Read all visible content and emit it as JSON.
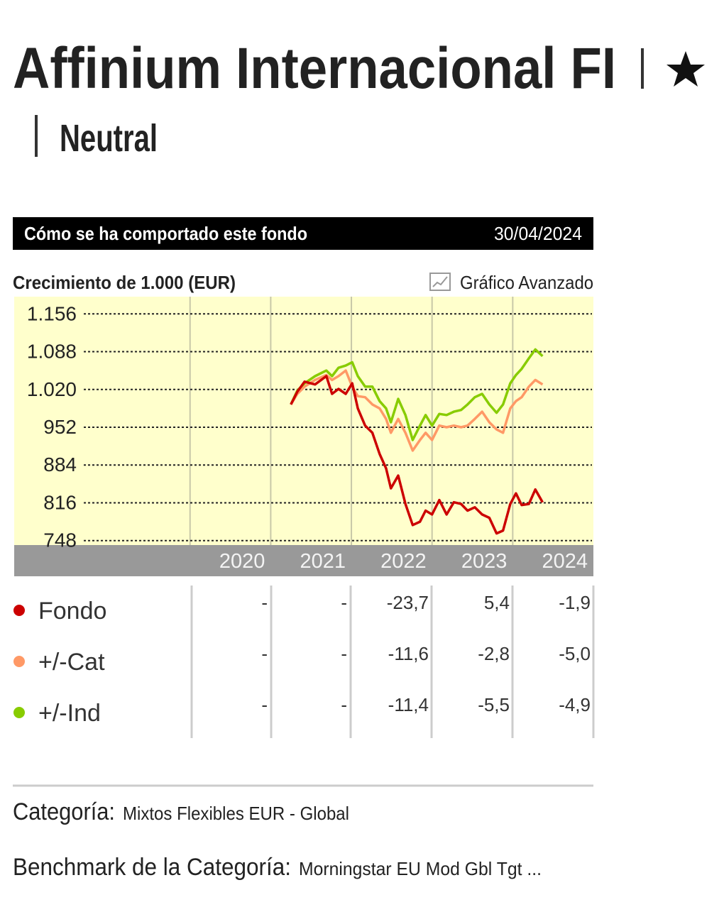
{
  "header": {
    "title": "Affinium Internacional FI",
    "rating": "Neutral"
  },
  "section": {
    "title": "Cómo se ha comportado este fondo",
    "date": "30/04/2024"
  },
  "chart_data": {
    "type": "line",
    "title": "Crecimiento de 1.000 (EUR)",
    "link": "Gráfico Avanzado",
    "x": [
      2021.25,
      2021.33,
      2021.42,
      2021.55,
      2021.69,
      2021.76,
      2021.84,
      2021.93,
      2022.01,
      2022.08,
      2022.17,
      2022.26,
      2022.35,
      2022.43,
      2022.49,
      2022.58,
      2022.67,
      2022.76,
      2022.85,
      2022.92,
      2023.0,
      2023.09,
      2023.18,
      2023.27,
      2023.36,
      2023.44,
      2023.53,
      2023.62,
      2023.71,
      2023.8,
      2023.88,
      2023.97,
      2024.04,
      2024.11,
      2024.2,
      2024.28,
      2024.37
    ],
    "series": [
      {
        "name": "Fondo",
        "color": "#cc0000",
        "values": [
          993,
          1016,
          1034,
          1029,
          1044,
          1012,
          1021,
          1012,
          1031,
          986,
          955,
          942,
          904,
          878,
          842,
          865,
          814,
          776,
          782,
          802,
          795,
          821,
          795,
          817,
          814,
          802,
          808,
          795,
          789,
          761,
          766,
          814,
          833,
          812,
          814,
          840,
          817
        ]
      },
      {
        "name": "+/-Cat",
        "color": "#ff9966",
        "values": [
          993,
          1012,
          1025,
          1037,
          1046,
          1037,
          1044,
          1054,
          1025,
          1008,
          1006,
          993,
          986,
          967,
          942,
          967,
          942,
          910,
          929,
          942,
          929,
          955,
          952,
          955,
          952,
          955,
          967,
          980,
          961,
          948,
          942,
          986,
          999,
          1006,
          1025,
          1037,
          1029
        ]
      },
      {
        "name": "+/-Ind",
        "color": "#88cc00",
        "values": [
          993,
          1018,
          1031,
          1044,
          1054,
          1044,
          1059,
          1063,
          1069,
          1044,
          1025,
          1025,
          999,
          986,
          961,
          1003,
          974,
          929,
          955,
          974,
          955,
          976,
          974,
          980,
          983,
          993,
          1006,
          1012,
          993,
          978,
          993,
          1031,
          1046,
          1057,
          1076,
          1092,
          1080
        ]
      }
    ],
    "xlim": [
      2017.82,
      2025
    ],
    "xticks": [
      2020,
      2021,
      2022,
      2023,
      2024
    ],
    "ylim": [
      740,
      1187
    ],
    "yticks": [
      748,
      816,
      884,
      952,
      {
        "value": 1020,
        "label": "1.020"
      },
      {
        "value": 1088,
        "label": "1.088"
      },
      {
        "value": 1156,
        "label": "1.156"
      }
    ],
    "grid": true,
    "background": "#ffffcc"
  },
  "table": {
    "rows": [
      [
        "-",
        "-",
        "-23,7",
        "5,4",
        "-1,9"
      ],
      [
        "-",
        "-",
        "-11,6",
        "-2,8",
        "-5,0"
      ],
      [
        "-",
        "-",
        "-11,4",
        "-5,5",
        "-4,9"
      ]
    ]
  },
  "footer": {
    "category_label": "Categoría:",
    "category": "Mixtos Flexibles EUR - Global",
    "benchmark_label": "Benchmark de la Categoría:",
    "benchmark": "Morningstar EU Mod Gbl Tgt ..."
  }
}
